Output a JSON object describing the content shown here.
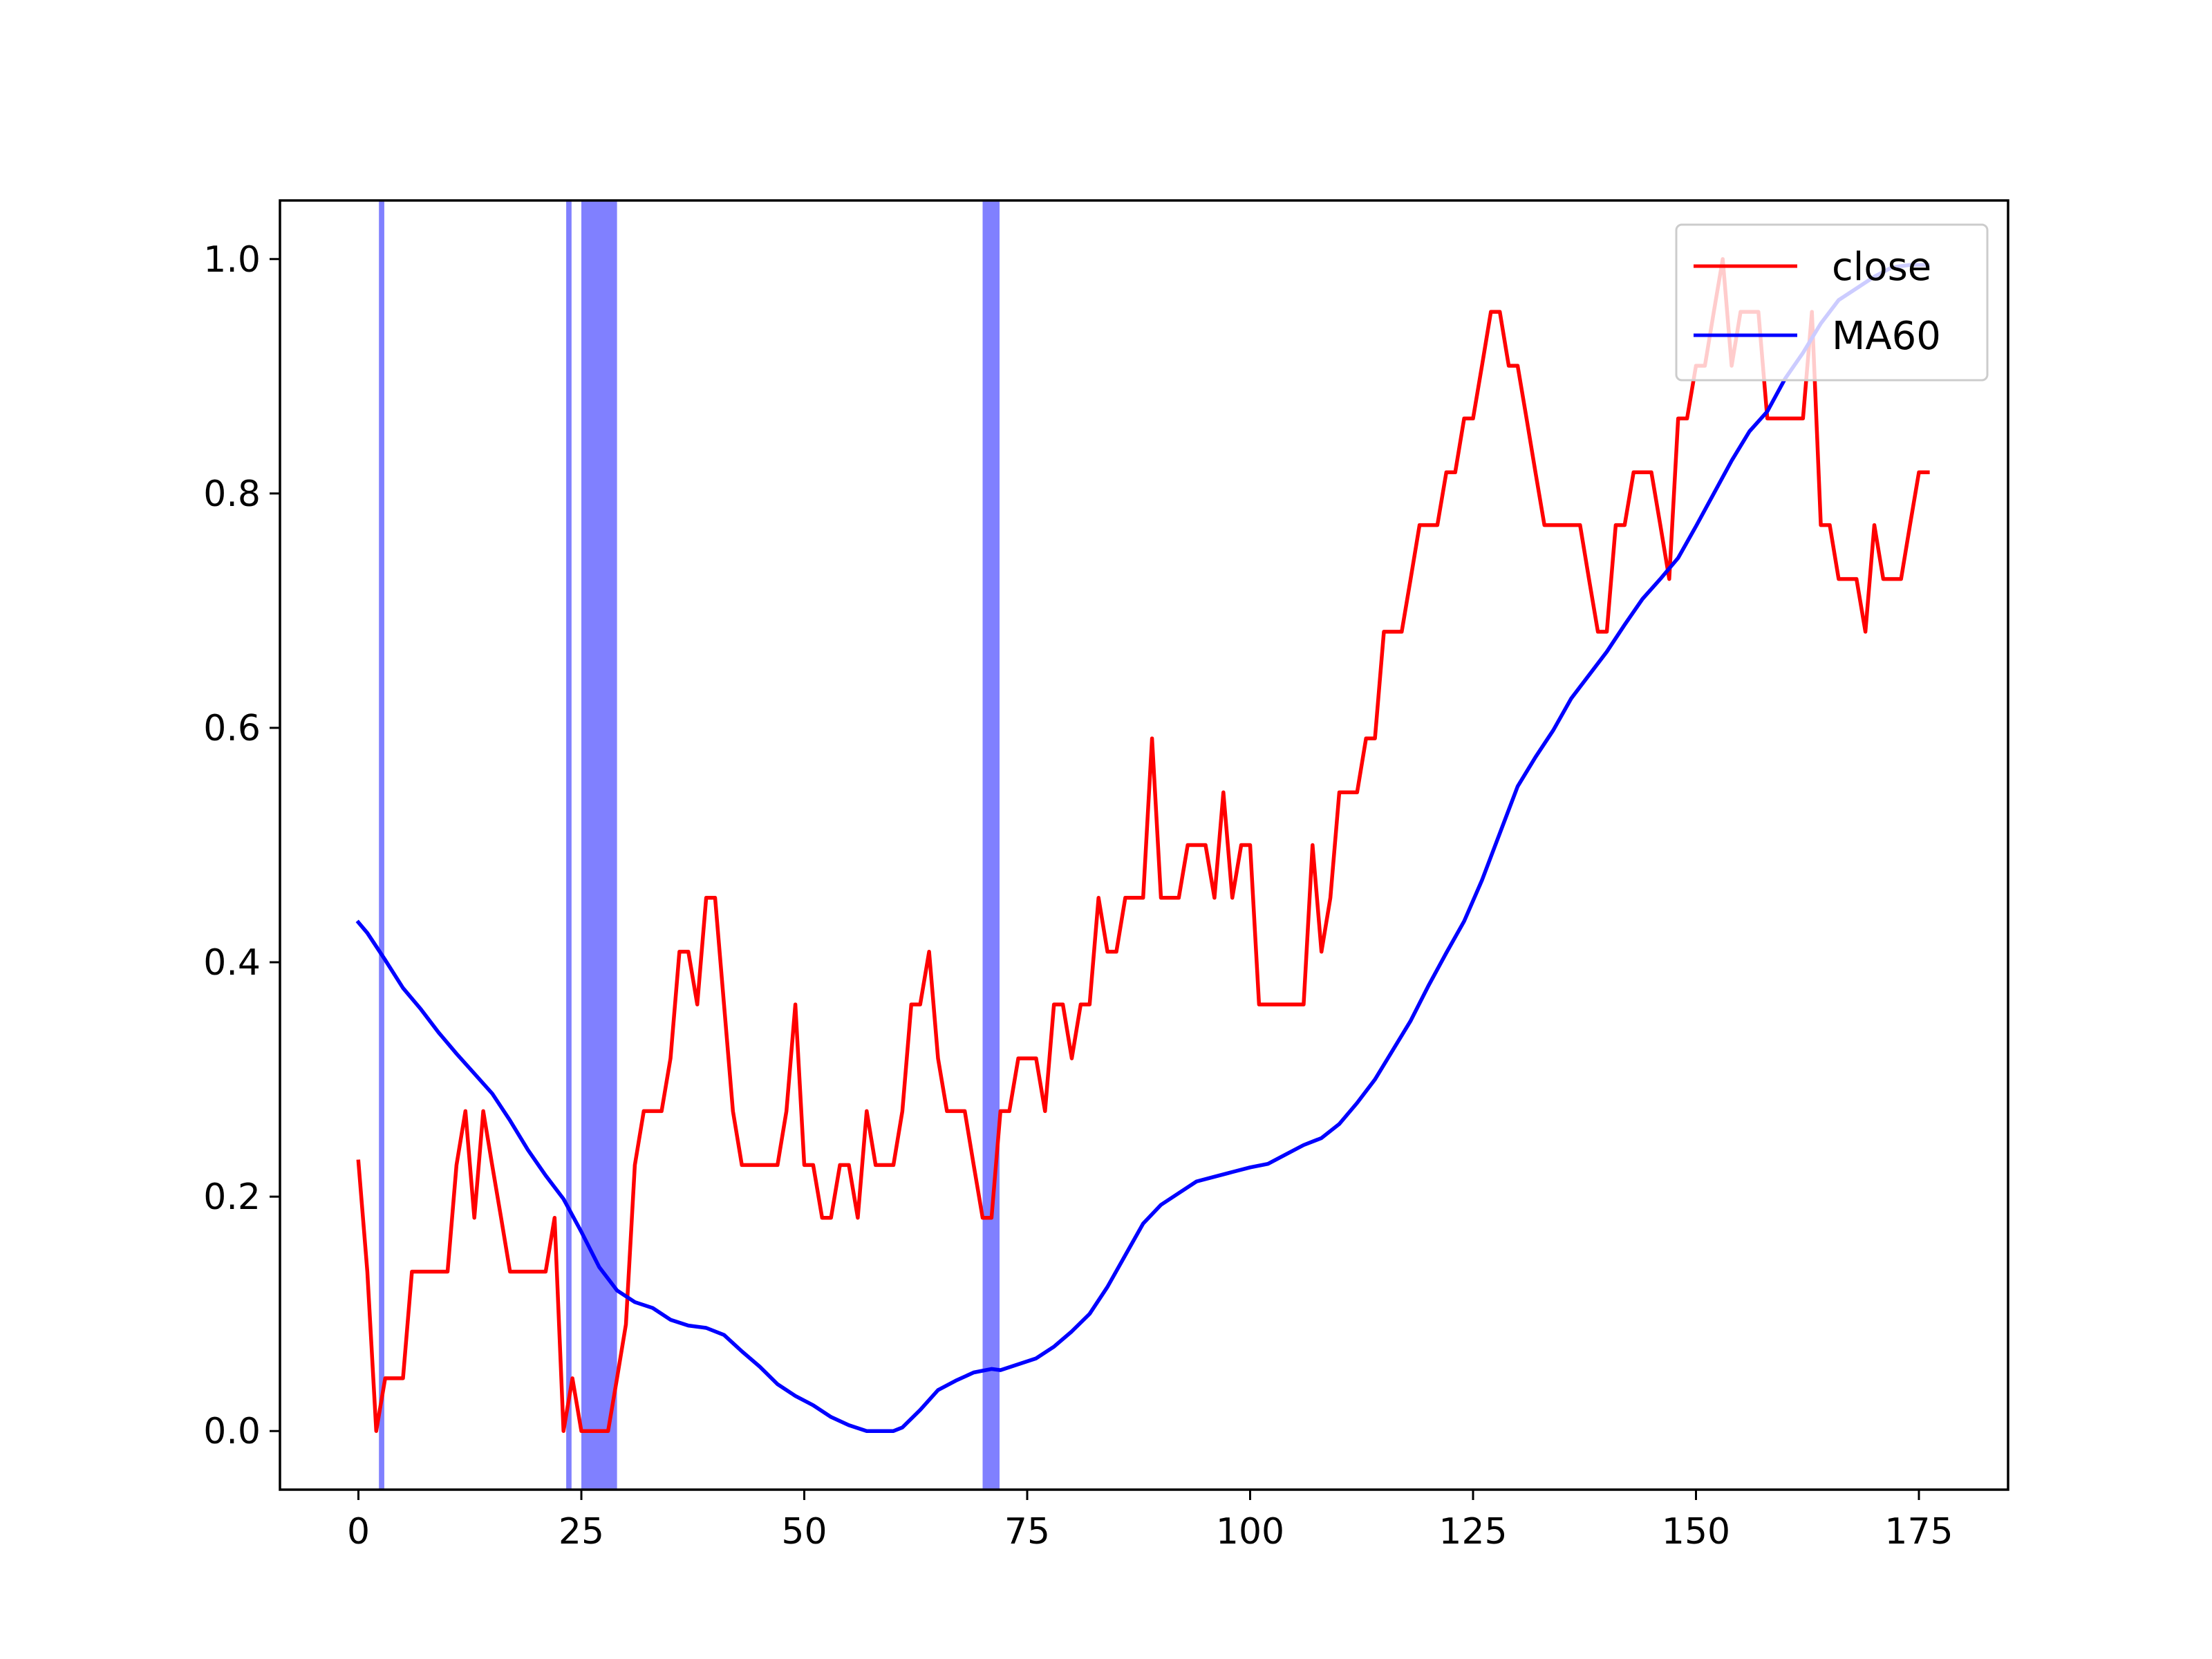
{
  "chart_data": {
    "type": "line",
    "title": "",
    "xlabel": "",
    "ylabel": "",
    "xlim": [
      -8.8,
      185
    ],
    "ylim": [
      -0.05,
      1.05
    ],
    "xticks": [
      0,
      25,
      50,
      75,
      100,
      125,
      150,
      175
    ],
    "yticks": [
      0.0,
      0.2,
      0.4,
      0.6,
      0.8,
      1.0
    ],
    "xtick_labels": [
      "0",
      "25",
      "50",
      "75",
      "100",
      "125",
      "150",
      "175"
    ],
    "ytick_labels": [
      "0.0",
      "0.2",
      "0.4",
      "0.6",
      "0.8",
      "1.0"
    ],
    "grid": false,
    "legend_position": "top-right",
    "colors": {
      "close": "#ff0000",
      "ma60": "#0000ff",
      "band": "#8080ff"
    },
    "highlight_bands": [
      [
        2.3,
        2.9
      ],
      [
        23.3,
        23.9
      ],
      [
        25.0,
        29.0
      ],
      [
        70.0,
        71.9
      ]
    ],
    "series": [
      {
        "name": "close",
        "points": [
          [
            0,
            0.23
          ],
          [
            1,
            0.136
          ],
          [
            2,
            0.0
          ],
          [
            3,
            0.045
          ],
          [
            4,
            0.045
          ],
          [
            5,
            0.045
          ],
          [
            6,
            0.136
          ],
          [
            7,
            0.136
          ],
          [
            8,
            0.136
          ],
          [
            9,
            0.136
          ],
          [
            10,
            0.136
          ],
          [
            11,
            0.227
          ],
          [
            12,
            0.273
          ],
          [
            13,
            0.182
          ],
          [
            14,
            0.273
          ],
          [
            15,
            0.227
          ],
          [
            16,
            0.182
          ],
          [
            17,
            0.136
          ],
          [
            18,
            0.136
          ],
          [
            19,
            0.136
          ],
          [
            20,
            0.136
          ],
          [
            21,
            0.136
          ],
          [
            22,
            0.182
          ],
          [
            23,
            0.0
          ],
          [
            24,
            0.045
          ],
          [
            25,
            0.0
          ],
          [
            26,
            0.0
          ],
          [
            27,
            0.0
          ],
          [
            28,
            0.0
          ],
          [
            29,
            0.045
          ],
          [
            30,
            0.091
          ],
          [
            31,
            0.227
          ],
          [
            32,
            0.273
          ],
          [
            33,
            0.273
          ],
          [
            34,
            0.273
          ],
          [
            35,
            0.318
          ],
          [
            36,
            0.409
          ],
          [
            37,
            0.409
          ],
          [
            38,
            0.364
          ],
          [
            39,
            0.455
          ],
          [
            40,
            0.455
          ],
          [
            41,
            0.364
          ],
          [
            42,
            0.273
          ],
          [
            43,
            0.227
          ],
          [
            44,
            0.227
          ],
          [
            45,
            0.227
          ],
          [
            46,
            0.227
          ],
          [
            47,
            0.227
          ],
          [
            48,
            0.273
          ],
          [
            49,
            0.364
          ],
          [
            50,
            0.227
          ],
          [
            51,
            0.227
          ],
          [
            52,
            0.182
          ],
          [
            53,
            0.182
          ],
          [
            54,
            0.227
          ],
          [
            55,
            0.227
          ],
          [
            56,
            0.182
          ],
          [
            57,
            0.273
          ],
          [
            58,
            0.227
          ],
          [
            59,
            0.227
          ],
          [
            60,
            0.227
          ],
          [
            61,
            0.273
          ],
          [
            62,
            0.364
          ],
          [
            63,
            0.364
          ],
          [
            64,
            0.409
          ],
          [
            65,
            0.318
          ],
          [
            66,
            0.273
          ],
          [
            67,
            0.273
          ],
          [
            68,
            0.273
          ],
          [
            69,
            0.227
          ],
          [
            70,
            0.182
          ],
          [
            71,
            0.182
          ],
          [
            72,
            0.273
          ],
          [
            73,
            0.273
          ],
          [
            74,
            0.318
          ],
          [
            75,
            0.318
          ],
          [
            76,
            0.318
          ],
          [
            77,
            0.273
          ],
          [
            78,
            0.364
          ],
          [
            79,
            0.364
          ],
          [
            80,
            0.318
          ],
          [
            81,
            0.364
          ],
          [
            82,
            0.364
          ],
          [
            83,
            0.455
          ],
          [
            84,
            0.409
          ],
          [
            85,
            0.409
          ],
          [
            86,
            0.455
          ],
          [
            87,
            0.455
          ],
          [
            88,
            0.455
          ],
          [
            89,
            0.591
          ],
          [
            90,
            0.455
          ],
          [
            91,
            0.455
          ],
          [
            92,
            0.455
          ],
          [
            93,
            0.5
          ],
          [
            94,
            0.5
          ],
          [
            95,
            0.5
          ],
          [
            96,
            0.455
          ],
          [
            97,
            0.545
          ],
          [
            98,
            0.455
          ],
          [
            99,
            0.5
          ],
          [
            100,
            0.5
          ],
          [
            101,
            0.364
          ],
          [
            102,
            0.364
          ],
          [
            103,
            0.364
          ],
          [
            104,
            0.364
          ],
          [
            105,
            0.364
          ],
          [
            106,
            0.364
          ],
          [
            107,
            0.5
          ],
          [
            108,
            0.409
          ],
          [
            109,
            0.455
          ],
          [
            110,
            0.545
          ],
          [
            111,
            0.545
          ],
          [
            112,
            0.545
          ],
          [
            113,
            0.591
          ],
          [
            114,
            0.591
          ],
          [
            115,
            0.682
          ],
          [
            116,
            0.682
          ],
          [
            117,
            0.682
          ],
          [
            118,
            0.727
          ],
          [
            119,
            0.773
          ],
          [
            120,
            0.773
          ],
          [
            121,
            0.773
          ],
          [
            122,
            0.818
          ],
          [
            123,
            0.818
          ],
          [
            124,
            0.864
          ],
          [
            125,
            0.864
          ],
          [
            126,
            0.909
          ],
          [
            127,
            0.955
          ],
          [
            128,
            0.955
          ],
          [
            129,
            0.909
          ],
          [
            130,
            0.909
          ],
          [
            131,
            0.864
          ],
          [
            132,
            0.818
          ],
          [
            133,
            0.773
          ],
          [
            134,
            0.773
          ],
          [
            135,
            0.773
          ],
          [
            136,
            0.773
          ],
          [
            137,
            0.773
          ],
          [
            138,
            0.727
          ],
          [
            139,
            0.682
          ],
          [
            140,
            0.682
          ],
          [
            141,
            0.773
          ],
          [
            142,
            0.773
          ],
          [
            143,
            0.818
          ],
          [
            144,
            0.818
          ],
          [
            145,
            0.818
          ],
          [
            146,
            0.773
          ],
          [
            147,
            0.727
          ],
          [
            148,
            0.864
          ],
          [
            149,
            0.864
          ],
          [
            150,
            0.909
          ],
          [
            151,
            0.909
          ],
          [
            152,
            0.955
          ],
          [
            153,
            1.0
          ],
          [
            154,
            0.909
          ],
          [
            155,
            0.955
          ],
          [
            156,
            0.955
          ],
          [
            157,
            0.955
          ],
          [
            158,
            0.864
          ],
          [
            159,
            0.864
          ],
          [
            160,
            0.864
          ],
          [
            161,
            0.864
          ],
          [
            162,
            0.864
          ],
          [
            163,
            0.955
          ],
          [
            164,
            0.773
          ],
          [
            165,
            0.773
          ],
          [
            166,
            0.727
          ],
          [
            167,
            0.727
          ],
          [
            168,
            0.727
          ],
          [
            169,
            0.682
          ],
          [
            170,
            0.773
          ],
          [
            171,
            0.727
          ],
          [
            172,
            0.727
          ],
          [
            173,
            0.727
          ],
          [
            174,
            0.773
          ],
          [
            175,
            0.818
          ],
          [
            176,
            0.818
          ]
        ]
      },
      {
        "name": "MA60",
        "points": [
          [
            0,
            0.434
          ],
          [
            1,
            0.425
          ],
          [
            3,
            0.402
          ],
          [
            5,
            0.378
          ],
          [
            7,
            0.36
          ],
          [
            9,
            0.34
          ],
          [
            11,
            0.322
          ],
          [
            13,
            0.305
          ],
          [
            15,
            0.288
          ],
          [
            17,
            0.265
          ],
          [
            19,
            0.24
          ],
          [
            21,
            0.218
          ],
          [
            23,
            0.198
          ],
          [
            25,
            0.17
          ],
          [
            27,
            0.14
          ],
          [
            29,
            0.12
          ],
          [
            31,
            0.11
          ],
          [
            33,
            0.105
          ],
          [
            35,
            0.095
          ],
          [
            37,
            0.09
          ],
          [
            39,
            0.088
          ],
          [
            41,
            0.082
          ],
          [
            43,
            0.068
          ],
          [
            45,
            0.055
          ],
          [
            47,
            0.04
          ],
          [
            49,
            0.03
          ],
          [
            51,
            0.022
          ],
          [
            53,
            0.012
          ],
          [
            55,
            0.005
          ],
          [
            57,
            0.0
          ],
          [
            60,
            0.0
          ],
          [
            61,
            0.003
          ],
          [
            63,
            0.018
          ],
          [
            65,
            0.035
          ],
          [
            67,
            0.043
          ],
          [
            69,
            0.05
          ],
          [
            71,
            0.053
          ],
          [
            72,
            0.052
          ],
          [
            74,
            0.057
          ],
          [
            76,
            0.062
          ],
          [
            78,
            0.072
          ],
          [
            80,
            0.085
          ],
          [
            82,
            0.1
          ],
          [
            84,
            0.123
          ],
          [
            86,
            0.15
          ],
          [
            88,
            0.177
          ],
          [
            90,
            0.193
          ],
          [
            92,
            0.203
          ],
          [
            94,
            0.213
          ],
          [
            96,
            0.217
          ],
          [
            98,
            0.221
          ],
          [
            100,
            0.225
          ],
          [
            102,
            0.228
          ],
          [
            104,
            0.236
          ],
          [
            106,
            0.244
          ],
          [
            108,
            0.25
          ],
          [
            110,
            0.262
          ],
          [
            112,
            0.28
          ],
          [
            114,
            0.3
          ],
          [
            116,
            0.325
          ],
          [
            118,
            0.35
          ],
          [
            120,
            0.38
          ],
          [
            122,
            0.408
          ],
          [
            124,
            0.435
          ],
          [
            126,
            0.47
          ],
          [
            128,
            0.51
          ],
          [
            130,
            0.55
          ],
          [
            132,
            0.575
          ],
          [
            134,
            0.598
          ],
          [
            136,
            0.625
          ],
          [
            138,
            0.645
          ],
          [
            140,
            0.665
          ],
          [
            142,
            0.688
          ],
          [
            144,
            0.71
          ],
          [
            146,
            0.727
          ],
          [
            148,
            0.745
          ],
          [
            150,
            0.772
          ],
          [
            152,
            0.8
          ],
          [
            154,
            0.828
          ],
          [
            156,
            0.853
          ],
          [
            158,
            0.87
          ],
          [
            160,
            0.898
          ],
          [
            162,
            0.92
          ],
          [
            164,
            0.945
          ],
          [
            166,
            0.965
          ],
          [
            168,
            0.975
          ],
          [
            170,
            0.985
          ],
          [
            172,
            0.993
          ],
          [
            174,
            0.995
          ],
          [
            176,
            0.995
          ]
        ]
      }
    ]
  }
}
